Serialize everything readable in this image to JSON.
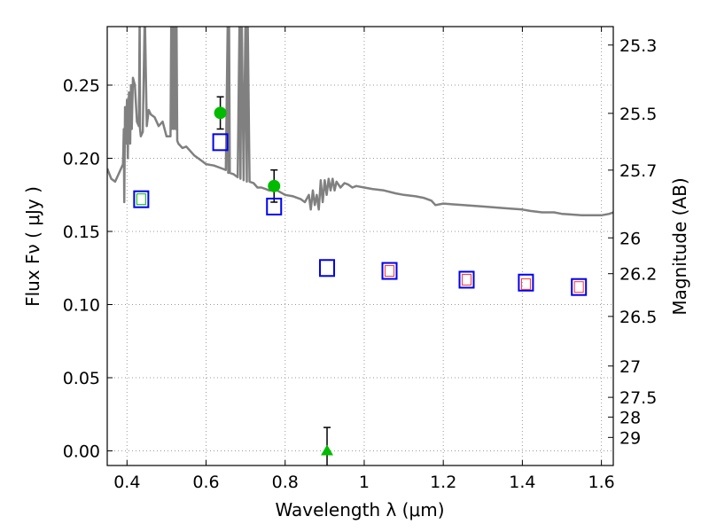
{
  "chart_data": {
    "type": "scatter",
    "title": "",
    "xlabel": "Wavelength  λ (μm)",
    "ylabel": "Flux  Fν ( μJy )",
    "y2label": "Magnitude (AB)",
    "xlim": [
      0.35,
      1.63
    ],
    "ylim": [
      -0.01,
      0.29
    ],
    "grid": true,
    "xticks": [
      0.4,
      0.6,
      0.8,
      1.0,
      1.2,
      1.4,
      1.6
    ],
    "xtick_labels": [
      "0.4",
      "0.6",
      "0.8",
      "1",
      "1.2",
      "1.4",
      "1.6"
    ],
    "yticks": [
      0.0,
      0.05,
      0.1,
      0.15,
      0.2,
      0.25
    ],
    "ytick_labels": [
      "0.00",
      "0.05",
      "0.10",
      "0.15",
      "0.20",
      "0.25"
    ],
    "y2ticks": [
      {
        "label": "25.3",
        "flux": 0.2774
      },
      {
        "label": "25.5",
        "flux": 0.2307
      },
      {
        "label": "25.7",
        "flux": 0.1919
      },
      {
        "label": "26",
        "flux": 0.1456
      },
      {
        "label": "26.2",
        "flux": 0.1211
      },
      {
        "label": "26.5",
        "flux": 0.0919
      },
      {
        "label": "27",
        "flux": 0.058
      },
      {
        "label": "27.5",
        "flux": 0.0366
      },
      {
        "label": "28",
        "flux": 0.0231
      },
      {
        "label": "29",
        "flux": 0.0092
      }
    ],
    "colors": {
      "sed": "#808080",
      "observed": "#00bb00",
      "model_box": "#0000ee",
      "model_box_inner": "#ff3333",
      "errorbar": "#000000",
      "grid": "#9a9a9a"
    },
    "series": [
      {
        "kind": "line",
        "x": [
          0.35,
          0.36,
          0.37,
          0.38,
          0.39,
          0.392,
          0.393,
          0.395,
          0.397,
          0.4,
          0.402,
          0.405,
          0.408,
          0.41,
          0.412,
          0.415,
          0.42,
          0.425,
          0.43,
          0.432,
          0.433,
          0.435,
          0.44,
          0.445,
          0.45,
          0.455,
          0.46,
          0.47,
          0.48,
          0.49,
          0.5,
          0.51,
          0.512,
          0.513,
          0.515,
          0.518,
          0.52,
          0.523,
          0.525,
          0.527,
          0.53,
          0.54,
          0.55,
          0.56,
          0.57,
          0.58,
          0.59,
          0.6,
          0.62,
          0.64,
          0.65,
          0.655,
          0.656,
          0.658,
          0.66,
          0.67,
          0.68,
          0.685,
          0.687,
          0.69,
          0.695,
          0.7,
          0.703,
          0.705,
          0.71,
          0.72,
          0.73,
          0.74,
          0.75,
          0.76,
          0.78,
          0.8,
          0.82,
          0.84,
          0.85,
          0.86,
          0.865,
          0.87,
          0.875,
          0.88,
          0.885,
          0.89,
          0.895,
          0.9,
          0.905,
          0.91,
          0.915,
          0.92,
          0.925,
          0.93,
          0.94,
          0.95,
          0.96,
          0.97,
          0.98,
          1.0,
          1.02,
          1.05,
          1.08,
          1.1,
          1.13,
          1.15,
          1.17,
          1.18,
          1.2,
          1.25,
          1.3,
          1.35,
          1.4,
          1.42,
          1.45,
          1.48,
          1.5,
          1.55,
          1.58,
          1.6,
          1.62,
          1.63
        ],
        "y": [
          0.193,
          0.186,
          0.184,
          0.19,
          0.196,
          0.22,
          0.17,
          0.235,
          0.21,
          0.24,
          0.2,
          0.245,
          0.21,
          0.25,
          0.22,
          0.255,
          0.25,
          0.225,
          0.222,
          0.3,
          0.22,
          0.215,
          0.218,
          0.3,
          0.222,
          0.233,
          0.23,
          0.228,
          0.222,
          0.225,
          0.215,
          0.215,
          0.3,
          0.22,
          0.3,
          0.22,
          0.3,
          0.22,
          0.3,
          0.212,
          0.21,
          0.207,
          0.208,
          0.205,
          0.202,
          0.2,
          0.198,
          0.196,
          0.195,
          0.193,
          0.192,
          0.3,
          0.19,
          0.3,
          0.19,
          0.189,
          0.187,
          0.3,
          0.186,
          0.3,
          0.185,
          0.3,
          0.184,
          0.3,
          0.184,
          0.183,
          0.18,
          0.18,
          0.179,
          0.178,
          0.178,
          0.175,
          0.174,
          0.172,
          0.17,
          0.175,
          0.165,
          0.178,
          0.168,
          0.175,
          0.165,
          0.185,
          0.17,
          0.185,
          0.175,
          0.186,
          0.178,
          0.186,
          0.178,
          0.184,
          0.18,
          0.183,
          0.182,
          0.18,
          0.181,
          0.18,
          0.179,
          0.178,
          0.176,
          0.175,
          0.174,
          0.173,
          0.171,
          0.168,
          0.169,
          0.168,
          0.167,
          0.166,
          0.165,
          0.164,
          0.163,
          0.163,
          0.162,
          0.161,
          0.161,
          0.161,
          0.162,
          0.163
        ]
      },
      {
        "kind": "points",
        "marker": "circle",
        "x": [
          0.636,
          0.772
        ],
        "y": [
          0.231,
          0.181
        ],
        "yerr": [
          0.011,
          0.011
        ]
      },
      {
        "kind": "points",
        "marker": "triangle",
        "x": [
          0.906
        ],
        "y": [
          0.0
        ],
        "yerr": [
          0.016
        ]
      },
      {
        "kind": "points",
        "marker": "square-open",
        "x": [
          0.436,
          0.636,
          0.772,
          0.906,
          1.064,
          1.259,
          1.409,
          1.543
        ],
        "y": [
          0.172,
          0.211,
          0.167,
          0.125,
          0.123,
          0.117,
          0.115,
          0.112
        ]
      },
      {
        "kind": "points",
        "marker": "square-small",
        "x": [
          0.436,
          1.064,
          1.259,
          1.409,
          1.543
        ],
        "y": [
          0.172,
          0.123,
          0.117,
          0.114,
          0.112
        ]
      }
    ]
  }
}
